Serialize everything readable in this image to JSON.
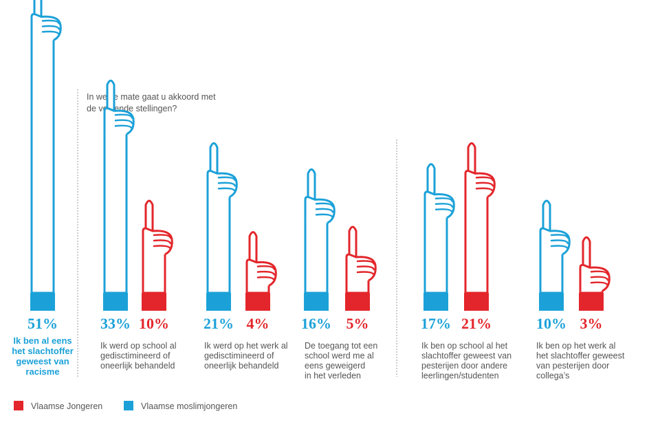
{
  "question": [
    "In welke mate gaat u akkoord met",
    "de volgende stellingen?"
  ],
  "colors": {
    "muslim": "#1ba1d8",
    "flemish": "#e3262b"
  },
  "chart_data": {
    "type": "bar",
    "series": [
      {
        "name": "Vlaamse moslimjongeren",
        "values": [
          51,
          33,
          21,
          16,
          17,
          10
        ]
      },
      {
        "name": "Vlaamse Jongeren",
        "values": [
          null,
          10,
          4,
          5,
          21,
          3
        ]
      }
    ],
    "categories": [
      [
        "Ik ben al eens",
        "het slachtoffer",
        "geweest van",
        "racisme"
      ],
      [
        "Ik werd op school al",
        "gedisctimineerd of",
        "oneerlijk behandeld"
      ],
      [
        "Ik werd op het werk al",
        "gedisctimineerd of",
        "oneerlijk behandeld"
      ],
      [
        "De toegang tot een",
        "school werd me al",
        "eens geweigerd",
        "in het verleden"
      ],
      [
        "Ik ben op school al het",
        "slachtoffer geweest van",
        "pesterijen door andere",
        "leerlingen/studenten"
      ],
      [
        "Ik ben op het werk al",
        "het slachtoffer geweest",
        "van pesterijen door",
        "collega’s"
      ]
    ],
    "labels": {
      "muslim": [
        "51%",
        "33%",
        "21%",
        "16%",
        "17%",
        "10%"
      ],
      "flemish": [
        null,
        "10%",
        "4%",
        "5%",
        "21%",
        "3%"
      ]
    }
  },
  "legend": [
    {
      "label": "Vlaamse Jongeren",
      "color": "#e3262b"
    },
    {
      "label": "Vlaamse moslimjongeren",
      "color": "#1ba1d8"
    }
  ]
}
